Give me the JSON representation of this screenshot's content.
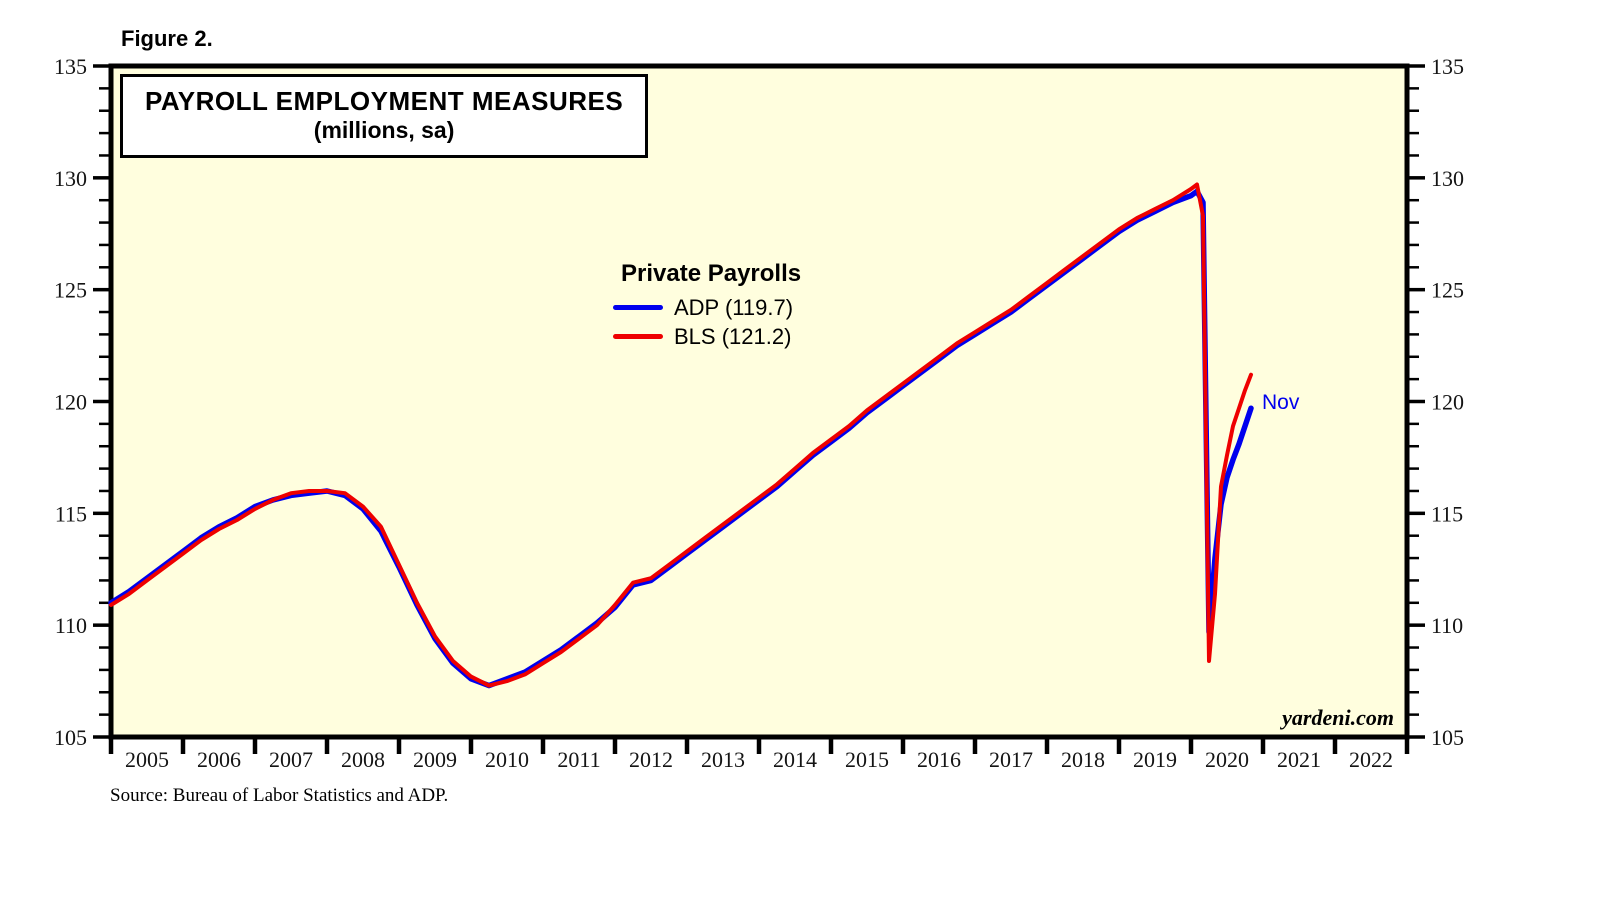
{
  "figure_label": "Figure 2.",
  "title_box": {
    "title": "PAYROLL EMPLOYMENT MEASURES",
    "subtitle": "(millions, sa)"
  },
  "legend": {
    "heading": "Private Payrolls",
    "items": [
      {
        "name": "ADP",
        "label": "ADP (119.7)",
        "color": "#0000ee"
      },
      {
        "name": "BLS",
        "label": "BLS (121.2)",
        "color": "#ee0000"
      }
    ]
  },
  "annotations": {
    "nov_label": "Nov",
    "watermark": "yardeni.com"
  },
  "source_note": "Source: Bureau of Labor Statistics and ADP.",
  "axes": {
    "y_major_ticks": [
      105,
      110,
      115,
      120,
      125,
      130,
      135
    ],
    "y_minor_step": 1,
    "x_year_labels": [
      "2005",
      "2006",
      "2007",
      "2008",
      "2009",
      "2010",
      "2011",
      "2012",
      "2013",
      "2014",
      "2015",
      "2016",
      "2017",
      "2018",
      "2019",
      "2020",
      "2021",
      "2022"
    ]
  },
  "chart_data": {
    "type": "line",
    "title": "PAYROLL EMPLOYMENT MEASURES",
    "subtitle": "(millions, sa)",
    "ylabel": "millions, sa",
    "ylim": [
      105,
      135
    ],
    "xlim_years": [
      2005,
      2023
    ],
    "grid": false,
    "legend_position": "inside-center-left",
    "plot_background": "#fffede",
    "x": [
      2005.0,
      2005.25,
      2005.5,
      2005.75,
      2006.0,
      2006.25,
      2006.5,
      2006.75,
      2007.0,
      2007.25,
      2007.5,
      2007.75,
      2008.0,
      2008.25,
      2008.5,
      2008.75,
      2009.0,
      2009.25,
      2009.5,
      2009.75,
      2010.0,
      2010.25,
      2010.5,
      2010.75,
      2011.0,
      2011.25,
      2011.5,
      2011.75,
      2012.0,
      2012.25,
      2012.5,
      2012.75,
      2013.0,
      2013.25,
      2013.5,
      2013.75,
      2014.0,
      2014.25,
      2014.5,
      2014.75,
      2015.0,
      2015.25,
      2015.5,
      2015.75,
      2016.0,
      2016.25,
      2016.5,
      2016.75,
      2017.0,
      2017.25,
      2017.5,
      2017.75,
      2018.0,
      2018.25,
      2018.5,
      2018.75,
      2019.0,
      2019.25,
      2019.5,
      2019.75,
      2020.0,
      2020.083,
      2020.167,
      2020.25,
      2020.333,
      2020.417,
      2020.5,
      2020.583,
      2020.667,
      2020.75,
      2020.833
    ],
    "series": [
      {
        "name": "ADP",
        "color": "#0000ee",
        "line_width": 5.5,
        "final_label": "Nov",
        "final_value": 119.7,
        "values": [
          111.0,
          111.5,
          112.1,
          112.7,
          113.3,
          113.9,
          114.4,
          114.8,
          115.3,
          115.6,
          115.8,
          115.9,
          116.0,
          115.8,
          115.2,
          114.2,
          112.6,
          110.9,
          109.4,
          108.3,
          107.6,
          107.3,
          107.6,
          107.9,
          108.4,
          108.9,
          109.5,
          110.1,
          110.8,
          111.8,
          112.0,
          112.6,
          113.2,
          113.8,
          114.4,
          115.0,
          115.6,
          116.2,
          116.9,
          117.6,
          118.2,
          118.8,
          119.5,
          120.1,
          120.7,
          121.3,
          121.9,
          122.5,
          123.0,
          123.5,
          124.0,
          124.6,
          125.2,
          125.8,
          126.4,
          127.0,
          127.6,
          128.1,
          128.5,
          128.9,
          129.2,
          129.4,
          128.9,
          109.7,
          113.0,
          115.4,
          116.6,
          117.4,
          118.1,
          118.9,
          119.7
        ]
      },
      {
        "name": "BLS",
        "color": "#ee0000",
        "line_width": 4,
        "final_value": 121.2,
        "values": [
          110.9,
          111.4,
          112.0,
          112.6,
          113.2,
          113.8,
          114.3,
          114.7,
          115.2,
          115.6,
          115.9,
          116.0,
          116.0,
          115.9,
          115.3,
          114.4,
          112.7,
          111.0,
          109.5,
          108.4,
          107.7,
          107.3,
          107.5,
          107.8,
          108.3,
          108.8,
          109.4,
          110.0,
          110.9,
          111.9,
          112.1,
          112.7,
          113.3,
          113.9,
          114.5,
          115.1,
          115.7,
          116.3,
          117.0,
          117.7,
          118.3,
          118.9,
          119.6,
          120.2,
          120.8,
          121.4,
          122.0,
          122.6,
          123.1,
          123.6,
          124.1,
          124.7,
          125.3,
          125.9,
          126.5,
          127.1,
          127.7,
          128.2,
          128.6,
          129.0,
          129.5,
          129.7,
          128.3,
          108.4,
          111.4,
          116.2,
          117.6,
          118.9,
          119.7,
          120.5,
          121.2
        ]
      }
    ]
  }
}
